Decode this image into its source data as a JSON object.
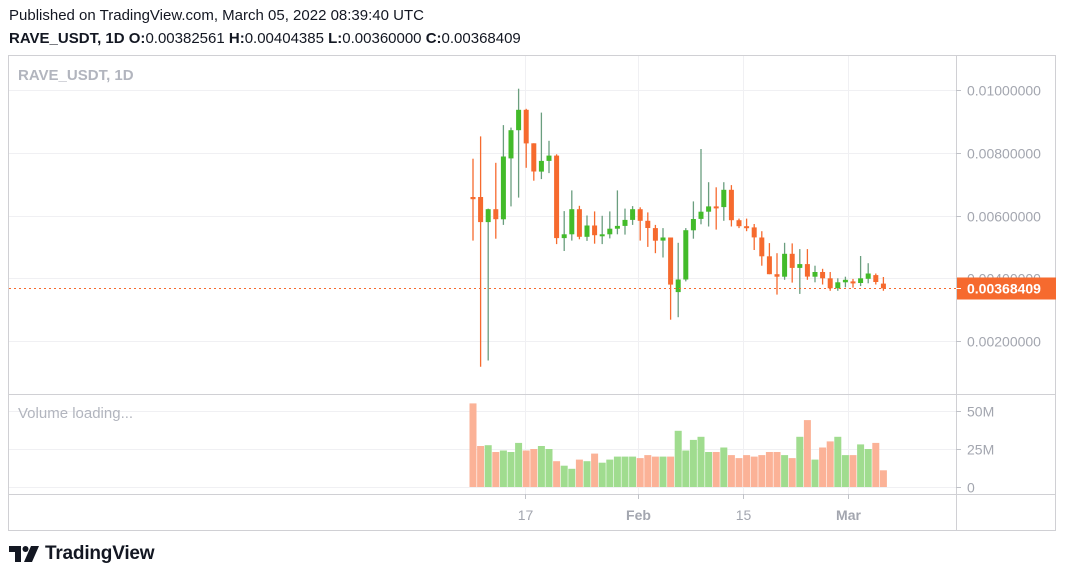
{
  "header": {
    "published": "Published on TradingView.com, March 05, 2022 08:39:40 UTC",
    "symbol_interval": "RAVE_USDT, 1D",
    "o_label": "O:",
    "o_value": "0.00382561",
    "h_label": "H:",
    "h_value": "0.00404385",
    "l_label": "L:",
    "l_value": "0.00360000",
    "c_label": "C:",
    "c_value": "0.00368409"
  },
  "pane": {
    "symbol_legend": "RAVE_USDT, 1D",
    "volume_legend": "Volume loading..."
  },
  "last_price_label": "0.00368409",
  "colors": {
    "up": "#43bb2a",
    "down": "#f66a2e",
    "up_wick": "#6a9e7f",
    "down_wick": "#f66a2e",
    "vol_up": "#a0dc8f",
    "vol_down": "#fbb297",
    "axis_text": "#a3a6af",
    "grid": "#f0f0f3",
    "last_price": "#f66a2e"
  },
  "logo": {
    "text": "TradingView"
  },
  "chart_data": {
    "type": "candlestick",
    "title": "RAVE_USDT, 1D",
    "xlabel": "",
    "ylabel": "",
    "x_ticks": [
      "17",
      "Feb",
      "15",
      "Mar"
    ],
    "y_ticks": [
      "0.01000000",
      "0.00800000",
      "0.00600000",
      "0.00400000",
      "0.00200000"
    ],
    "ylim": [
      0.0008,
      0.0105
    ],
    "volume_ticks": [
      "50M",
      "25M",
      "0"
    ],
    "volume_ylim": [
      0,
      60
    ],
    "grid": true,
    "last_price": 0.00368409,
    "series": [
      {
        "o": 0.00659,
        "h": 0.00781,
        "l": 0.0052,
        "c": 0.00652,
        "v": 55
      },
      {
        "o": 0.00659,
        "h": 0.00852,
        "l": 0.00118,
        "c": 0.00579,
        "v": 27
      },
      {
        "o": 0.00579,
        "h": 0.00622,
        "l": 0.00138,
        "c": 0.0062,
        "v": 27.5
      },
      {
        "o": 0.0062,
        "h": 0.00768,
        "l": 0.00526,
        "c": 0.00588,
        "v": 23
      },
      {
        "o": 0.00588,
        "h": 0.00888,
        "l": 0.0057,
        "c": 0.00788,
        "v": 24
      },
      {
        "o": 0.00782,
        "h": 0.0088,
        "l": 0.00629,
        "c": 0.00872,
        "v": 23
      },
      {
        "o": 0.00872,
        "h": 0.01004,
        "l": 0.00657,
        "c": 0.00937,
        "v": 29
      },
      {
        "o": 0.00937,
        "h": 0.0094,
        "l": 0.00752,
        "c": 0.0083,
        "v": 24
      },
      {
        "o": 0.0083,
        "h": 0.0081,
        "l": 0.00711,
        "c": 0.0074,
        "v": 25
      },
      {
        "o": 0.0074,
        "h": 0.00928,
        "l": 0.00716,
        "c": 0.00774,
        "v": 27
      },
      {
        "o": 0.00774,
        "h": 0.00838,
        "l": 0.00735,
        "c": 0.00791,
        "v": 25
      },
      {
        "o": 0.00791,
        "h": 0.00795,
        "l": 0.00509,
        "c": 0.00528,
        "v": 17
      },
      {
        "o": 0.00528,
        "h": 0.00614,
        "l": 0.00487,
        "c": 0.0054,
        "v": 14
      },
      {
        "o": 0.0054,
        "h": 0.0068,
        "l": 0.0052,
        "c": 0.0062,
        "v": 12
      },
      {
        "o": 0.0062,
        "h": 0.00631,
        "l": 0.00524,
        "c": 0.00532,
        "v": 18
      },
      {
        "o": 0.00532,
        "h": 0.006,
        "l": 0.00519,
        "c": 0.00568,
        "v": 17
      },
      {
        "o": 0.00568,
        "h": 0.00613,
        "l": 0.0051,
        "c": 0.00537,
        "v": 22
      },
      {
        "o": 0.00537,
        "h": 0.00599,
        "l": 0.00509,
        "c": 0.0054,
        "v": 16
      },
      {
        "o": 0.0054,
        "h": 0.00613,
        "l": 0.00527,
        "c": 0.00558,
        "v": 18
      },
      {
        "o": 0.00558,
        "h": 0.0068,
        "l": 0.0054,
        "c": 0.00567,
        "v": 20
      },
      {
        "o": 0.00567,
        "h": 0.00622,
        "l": 0.00539,
        "c": 0.00586,
        "v": 20
      },
      {
        "o": 0.00586,
        "h": 0.0063,
        "l": 0.0057,
        "c": 0.0062,
        "v": 20
      },
      {
        "o": 0.0062,
        "h": 0.00626,
        "l": 0.0052,
        "c": 0.00583,
        "v": 19
      },
      {
        "o": 0.00583,
        "h": 0.0061,
        "l": 0.005,
        "c": 0.0056,
        "v": 21
      },
      {
        "o": 0.0056,
        "h": 0.0057,
        "l": 0.0048,
        "c": 0.0052,
        "v": 20
      },
      {
        "o": 0.0052,
        "h": 0.0056,
        "l": 0.00466,
        "c": 0.0053,
        "v": 20
      },
      {
        "o": 0.0053,
        "h": 0.005,
        "l": 0.00268,
        "c": 0.0038,
        "v": 20
      },
      {
        "o": 0.00356,
        "h": 0.00513,
        "l": 0.00276,
        "c": 0.00396,
        "v": 37
      },
      {
        "o": 0.00396,
        "h": 0.0056,
        "l": 0.0039,
        "c": 0.00553,
        "v": 24
      },
      {
        "o": 0.00553,
        "h": 0.00645,
        "l": 0.00526,
        "c": 0.00589,
        "v": 31
      },
      {
        "o": 0.00589,
        "h": 0.00812,
        "l": 0.00572,
        "c": 0.00612,
        "v": 33
      },
      {
        "o": 0.00612,
        "h": 0.00706,
        "l": 0.00565,
        "c": 0.00629,
        "v": 23
      },
      {
        "o": 0.00629,
        "h": 0.0069,
        "l": 0.00555,
        "c": 0.00627,
        "v": 23
      },
      {
        "o": 0.00627,
        "h": 0.00706,
        "l": 0.00583,
        "c": 0.00682,
        "v": 26
      },
      {
        "o": 0.00682,
        "h": 0.00697,
        "l": 0.00565,
        "c": 0.00585,
        "v": 21
      },
      {
        "o": 0.00585,
        "h": 0.0059,
        "l": 0.0056,
        "c": 0.00566,
        "v": 19
      },
      {
        "o": 0.00566,
        "h": 0.0059,
        "l": 0.0055,
        "c": 0.00562,
        "v": 21
      },
      {
        "o": 0.00562,
        "h": 0.00573,
        "l": 0.0049,
        "c": 0.0053,
        "v": 20
      },
      {
        "o": 0.0053,
        "h": 0.0055,
        "l": 0.0044,
        "c": 0.0047,
        "v": 21
      },
      {
        "o": 0.0047,
        "h": 0.00512,
        "l": 0.00425,
        "c": 0.00413,
        "v": 23
      },
      {
        "o": 0.00413,
        "h": 0.0048,
        "l": 0.00348,
        "c": 0.00405,
        "v": 23
      },
      {
        "o": 0.00405,
        "h": 0.00513,
        "l": 0.00395,
        "c": 0.00478,
        "v": 21
      },
      {
        "o": 0.00478,
        "h": 0.00511,
        "l": 0.00386,
        "c": 0.00433,
        "v": 19
      },
      {
        "o": 0.00433,
        "h": 0.00493,
        "l": 0.0035,
        "c": 0.00445,
        "v": 33
      },
      {
        "o": 0.00445,
        "h": 0.00493,
        "l": 0.00395,
        "c": 0.00405,
        "v": 44
      },
      {
        "o": 0.00405,
        "h": 0.0044,
        "l": 0.00387,
        "c": 0.0042,
        "v": 18
      },
      {
        "o": 0.0042,
        "h": 0.0043,
        "l": 0.0038,
        "c": 0.004,
        "v": 26
      },
      {
        "o": 0.004,
        "h": 0.0042,
        "l": 0.0036,
        "c": 0.00368,
        "v": 30
      },
      {
        "o": 0.00368,
        "h": 0.004,
        "l": 0.0036,
        "c": 0.00387,
        "v": 33
      },
      {
        "o": 0.00387,
        "h": 0.00405,
        "l": 0.00371,
        "c": 0.00395,
        "v": 21
      },
      {
        "o": 0.0039,
        "h": 0.00398,
        "l": 0.0037,
        "c": 0.00385,
        "v": 21
      },
      {
        "o": 0.00385,
        "h": 0.00471,
        "l": 0.00375,
        "c": 0.004,
        "v": 28
      },
      {
        "o": 0.00398,
        "h": 0.00448,
        "l": 0.00384,
        "c": 0.00415,
        "v": 25
      },
      {
        "o": 0.0041,
        "h": 0.00415,
        "l": 0.0038,
        "c": 0.00388,
        "v": 29
      },
      {
        "o": 0.00383,
        "h": 0.00404,
        "l": 0.0036,
        "c": 0.00368,
        "v": 11
      }
    ]
  }
}
